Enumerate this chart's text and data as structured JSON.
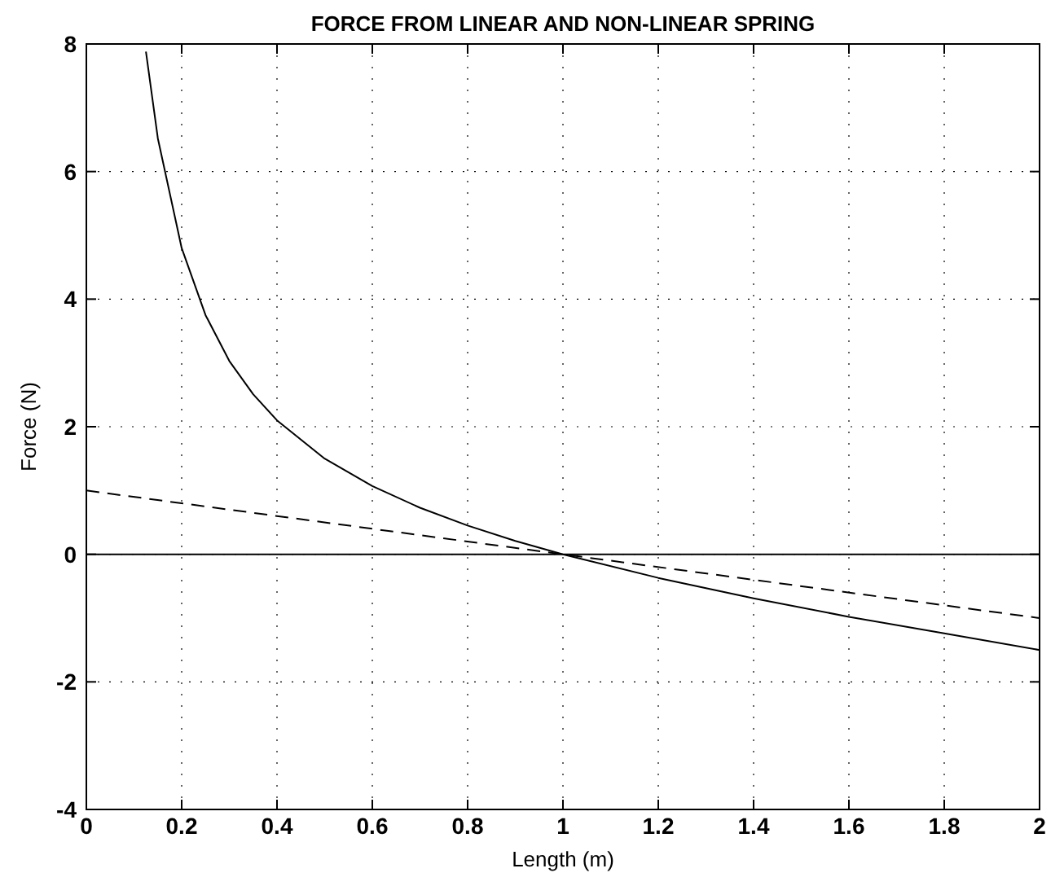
{
  "chart_data": {
    "type": "line",
    "title": "FORCE FROM LINEAR AND NON-LINEAR SPRING",
    "xlabel": "Length (m)",
    "ylabel": "Force (N)",
    "xlim": [
      0,
      2
    ],
    "ylim": [
      -4,
      8
    ],
    "xticks": [
      0,
      0.2,
      0.4,
      0.6,
      0.8,
      1,
      1.2,
      1.4,
      1.6,
      1.8,
      2
    ],
    "yticks": [
      -4,
      -2,
      0,
      2,
      4,
      6,
      8
    ],
    "grid": true,
    "series": [
      {
        "color": "#000000",
        "line_style": "solid",
        "x": [
          0.125,
          0.15,
          0.2,
          0.25,
          0.3,
          0.35,
          0.4,
          0.5,
          0.6,
          0.7,
          0.8,
          0.9,
          1.0,
          1.2,
          1.4,
          1.6,
          1.8,
          2.0
        ],
        "values": [
          7.88,
          6.52,
          4.8,
          3.75,
          3.03,
          2.51,
          2.1,
          1.5,
          1.07,
          0.73,
          0.45,
          0.21,
          0,
          -0.37,
          -0.69,
          -0.98,
          -1.24,
          -1.5
        ]
      },
      {
        "color": "#000000",
        "line_style": "dashed",
        "x": [
          0,
          2
        ],
        "values": [
          1,
          -1
        ]
      }
    ],
    "ref_lines": [
      {
        "axis": "y",
        "value": 0,
        "color": "#000000",
        "line_style": "solid"
      }
    ]
  }
}
